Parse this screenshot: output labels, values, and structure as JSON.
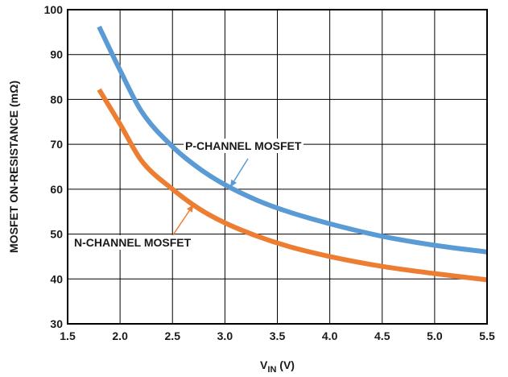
{
  "chart_data": {
    "type": "line",
    "title": "",
    "xlabel": {
      "main": "V",
      "sub": "IN",
      "unit": " (V)"
    },
    "ylabel": "MOSFET ON-RESISTANCE (mΩ)",
    "xlim": [
      1.5,
      5.5
    ],
    "ylim": [
      30,
      100
    ],
    "xticks": [
      "1.5",
      "2.0",
      "2.5",
      "3.0",
      "3.5",
      "4.0",
      "4.5",
      "5.0",
      "5.5"
    ],
    "yticks": [
      "30",
      "40",
      "50",
      "60",
      "70",
      "80",
      "90",
      "100"
    ],
    "grid": true,
    "series": [
      {
        "name": "P-CHANNEL MOSFET",
        "color": "#5b9bd5",
        "x": [
          1.8,
          2.0,
          2.2,
          2.5,
          2.75,
          3.0,
          3.3,
          3.6,
          4.0,
          4.5,
          5.0,
          5.5
        ],
        "y": [
          96.2,
          86.5,
          77.5,
          69.5,
          64.7,
          61.0,
          57.6,
          55.0,
          52.3,
          49.5,
          47.5,
          46.0
        ]
      },
      {
        "name": "N-CHANNEL MOSFET",
        "color": "#ed7d31",
        "x": [
          1.8,
          2.0,
          2.2,
          2.5,
          2.75,
          3.0,
          3.3,
          3.6,
          4.0,
          4.5,
          5.0,
          5.5
        ],
        "y": [
          82.2,
          74.5,
          66.5,
          60.0,
          55.7,
          52.5,
          49.6,
          47.3,
          45.0,
          42.8,
          41.2,
          39.8
        ]
      }
    ],
    "annotations": [
      {
        "text": "P-CHANNEL MOSFET",
        "series": 0,
        "points_at_x": 3.05,
        "arrow_color": "#5b9bd5"
      },
      {
        "text": "N-CHANNEL MOSFET",
        "series": 1,
        "points_at_x": 2.7,
        "arrow_color": "#ed7d31"
      }
    ]
  }
}
